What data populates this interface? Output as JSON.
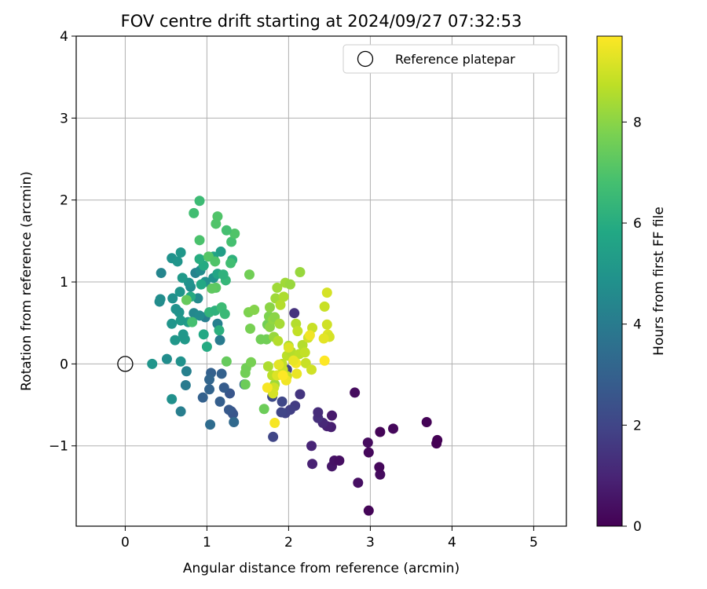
{
  "chart_data": {
    "type": "scatter",
    "title": "FOV centre drift starting at 2024/09/27 07:32:53",
    "xlabel": "Angular distance from reference (arcmin)",
    "ylabel": "Rotation from reference (arcmin)",
    "xlim": [
      -0.6,
      5.4
    ],
    "ylim": [
      -1.98,
      4.0
    ],
    "xticks": [
      0,
      1,
      2,
      3,
      4,
      5
    ],
    "yticks": [
      -1,
      0,
      1,
      2,
      3,
      4
    ],
    "grid": true,
    "colormap": "viridis",
    "legend": {
      "placement": "top-right",
      "label": "Reference platepar",
      "marker": "open-circle"
    },
    "reference_point": {
      "x": 0,
      "y": 0
    },
    "colorbar": {
      "label": "Hours from first FF file",
      "min": 0,
      "max": 9.7,
      "ticks": [
        0,
        2,
        4,
        6,
        8
      ]
    },
    "points": [
      [
        2.98,
        -1.79,
        0.1
      ],
      [
        2.85,
        -1.45,
        0.4
      ],
      [
        3.12,
        -1.35,
        0.3
      ],
      [
        3.11,
        -1.26,
        0.2
      ],
      [
        2.53,
        -1.25,
        0.6
      ],
      [
        2.56,
        -1.18,
        0.5
      ],
      [
        2.62,
        -1.18,
        0.4
      ],
      [
        2.29,
        -1.22,
        0.9
      ],
      [
        2.28,
        -1.0,
        1.0
      ],
      [
        2.98,
        -1.08,
        0.2
      ],
      [
        2.97,
        -0.96,
        0.3
      ],
      [
        3.12,
        -0.83,
        0.1
      ],
      [
        3.28,
        -0.79,
        0.2
      ],
      [
        3.69,
        -0.71,
        0.05
      ],
      [
        3.82,
        -0.93,
        0.02
      ],
      [
        3.81,
        -0.97,
        0.0
      ],
      [
        2.53,
        -0.63,
        0.7
      ],
      [
        2.52,
        -0.77,
        0.8
      ],
      [
        2.47,
        -0.76,
        0.9
      ],
      [
        2.42,
        -0.72,
        1.1
      ],
      [
        2.36,
        -0.66,
        1.3
      ],
      [
        2.36,
        -0.59,
        1.2
      ],
      [
        2.81,
        -0.35,
        0.3
      ],
      [
        2.14,
        -0.37,
        1.5
      ],
      [
        2.08,
        -0.51,
        1.7
      ],
      [
        2.02,
        -0.56,
        1.8
      ],
      [
        1.96,
        -0.6,
        1.9
      ],
      [
        1.91,
        -0.59,
        2.0
      ],
      [
        1.92,
        -0.46,
        2.1
      ],
      [
        1.8,
        -0.4,
        2.2
      ],
      [
        1.81,
        -0.89,
        2.0
      ],
      [
        2.07,
        0.62,
        1.4
      ],
      [
        1.98,
        -0.07,
        1.9
      ],
      [
        1.3,
        -0.58,
        2.5
      ],
      [
        1.32,
        -0.61,
        2.6
      ],
      [
        1.27,
        -0.56,
        2.7
      ],
      [
        1.28,
        -0.36,
        2.6
      ],
      [
        1.21,
        -0.29,
        2.8
      ],
      [
        1.16,
        -0.46,
        2.9
      ],
      [
        1.18,
        -0.12,
        3.0
      ],
      [
        1.03,
        -0.31,
        3.1
      ],
      [
        1.05,
        -0.11,
        3.0
      ],
      [
        1.03,
        -0.19,
        3.2
      ],
      [
        0.95,
        -0.41,
        3.0
      ],
      [
        1.04,
        -0.74,
        3.4
      ],
      [
        1.33,
        -0.71,
        3.3
      ],
      [
        1.46,
        -0.25,
        3.2
      ],
      [
        1.16,
        0.29,
        4.0
      ],
      [
        1.13,
        0.49,
        4.2
      ],
      [
        0.98,
        0.57,
        4.1
      ],
      [
        0.74,
        -0.26,
        4.0
      ],
      [
        0.75,
        -0.09,
        4.2
      ],
      [
        0.68,
        -0.58,
        4.1
      ],
      [
        0.57,
        -0.43,
        4.8
      ],
      [
        0.68,
        0.03,
        4.9
      ],
      [
        0.51,
        0.06,
        4.7
      ],
      [
        0.33,
        0.0,
        5.0
      ],
      [
        0.57,
        0.49,
        5.0
      ],
      [
        0.61,
        0.29,
        5.1
      ],
      [
        0.73,
        0.3,
        5.2
      ],
      [
        0.71,
        0.36,
        5.1
      ],
      [
        0.77,
        0.51,
        5.3
      ],
      [
        0.68,
        0.53,
        5.2
      ],
      [
        0.66,
        0.63,
        5.0
      ],
      [
        0.62,
        0.67,
        4.9
      ],
      [
        0.84,
        0.62,
        4.5
      ],
      [
        0.91,
        0.59,
        4.6
      ],
      [
        0.89,
        0.8,
        4.6
      ],
      [
        0.8,
        0.94,
        4.7
      ],
      [
        0.86,
        1.11,
        4.3
      ],
      [
        0.78,
        0.99,
        4.9
      ],
      [
        0.67,
        0.88,
        5.0
      ],
      [
        0.58,
        0.8,
        4.8
      ],
      [
        0.42,
        0.76,
        4.6
      ],
      [
        0.43,
        0.79,
        4.7
      ],
      [
        0.44,
        1.11,
        4.4
      ],
      [
        0.57,
        1.29,
        4.9
      ],
      [
        0.64,
        1.25,
        5.0
      ],
      [
        0.68,
        1.36,
        5.1
      ],
      [
        0.7,
        1.05,
        5.2
      ],
      [
        0.92,
        1.14,
        4.6
      ],
      [
        0.98,
        1.0,
        4.8
      ],
      [
        1.08,
        1.05,
        4.9
      ],
      [
        1.17,
        1.37,
        5.4
      ],
      [
        1.13,
        1.1,
        5.7
      ],
      [
        1.08,
        1.31,
        5.6
      ],
      [
        0.93,
        0.97,
        5.8
      ],
      [
        0.96,
        1.2,
        5.9
      ],
      [
        0.91,
        1.28,
        6.0
      ],
      [
        0.8,
        0.82,
        5.9
      ],
      [
        1.03,
        0.63,
        6.3
      ],
      [
        1.1,
        0.65,
        6.2
      ],
      [
        1.15,
        0.41,
        6.1
      ],
      [
        0.96,
        0.36,
        5.8
      ],
      [
        1.0,
        0.21,
        5.9
      ],
      [
        1.18,
        0.69,
        6.6
      ],
      [
        1.22,
        0.61,
        6.5
      ],
      [
        1.23,
        1.02,
        6.4
      ],
      [
        1.2,
        1.09,
        6.2
      ],
      [
        1.31,
        1.27,
        6.2
      ],
      [
        1.29,
        1.23,
        6.7
      ],
      [
        1.3,
        1.49,
        6.8
      ],
      [
        1.34,
        1.59,
        7.0
      ],
      [
        1.24,
        1.63,
        6.8
      ],
      [
        1.13,
        1.8,
        7.0
      ],
      [
        1.11,
        1.71,
        7.0
      ],
      [
        0.91,
        1.51,
        6.9
      ],
      [
        0.91,
        1.99,
        6.6
      ],
      [
        0.84,
        1.84,
        6.7
      ],
      [
        1.02,
        1.31,
        7.1
      ],
      [
        1.1,
        1.25,
        7.0
      ],
      [
        1.11,
        0.93,
        7.2
      ],
      [
        1.06,
        0.92,
        7.3
      ],
      [
        0.75,
        0.78,
        7.4
      ],
      [
        0.82,
        0.51,
        6.8
      ],
      [
        1.24,
        0.03,
        7.4
      ],
      [
        1.47,
        -0.25,
        7.5
      ],
      [
        1.48,
        -0.05,
        7.6
      ],
      [
        1.47,
        -0.11,
        7.6
      ],
      [
        1.54,
        0.02,
        7.7
      ],
      [
        1.53,
        0.43,
        7.7
      ],
      [
        1.51,
        0.63,
        7.8
      ],
      [
        1.58,
        0.66,
        7.9
      ],
      [
        1.52,
        1.09,
        7.6
      ],
      [
        1.66,
        0.3,
        7.6
      ],
      [
        1.73,
        0.3,
        7.6
      ],
      [
        1.74,
        0.48,
        7.6
      ],
      [
        1.76,
        0.58,
        7.8
      ],
      [
        1.77,
        0.45,
        8.0
      ],
      [
        1.77,
        0.69,
        8.0
      ],
      [
        1.81,
        0.54,
        8.1
      ],
      [
        1.83,
        0.57,
        8.0
      ],
      [
        1.82,
        0.33,
        8.2
      ],
      [
        1.89,
        0.49,
        8.4
      ],
      [
        1.84,
        0.8,
        8.3
      ],
      [
        1.86,
        0.93,
        8.3
      ],
      [
        1.96,
        0.99,
        8.3
      ],
      [
        2.02,
        0.97,
        8.2
      ],
      [
        2.14,
        1.12,
        8.2
      ],
      [
        1.94,
        0.82,
        8.5
      ],
      [
        1.9,
        0.72,
        8.6
      ],
      [
        1.83,
        -0.25,
        8.3
      ],
      [
        1.75,
        -0.03,
        8.5
      ],
      [
        1.8,
        -0.14,
        8.7
      ],
      [
        1.87,
        0.28,
        8.6
      ],
      [
        1.92,
        0.0,
        8.8
      ],
      [
        1.93,
        -0.07,
        8.9
      ],
      [
        1.98,
        -0.15,
        8.9
      ],
      [
        1.98,
        0.1,
        8.7
      ],
      [
        2.0,
        0.22,
        8.5
      ],
      [
        2.03,
        0.15,
        8.6
      ],
      [
        2.07,
        0.05,
        8.8
      ],
      [
        2.09,
        0.49,
        8.6
      ],
      [
        2.11,
        0.4,
        8.8
      ],
      [
        2.13,
        0.12,
        8.7
      ],
      [
        2.17,
        0.23,
        8.6
      ],
      [
        2.2,
        0.14,
        8.8
      ],
      [
        2.21,
        0.01,
        8.9
      ],
      [
        2.24,
        0.32,
        9.0
      ],
      [
        2.29,
        0.44,
        8.9
      ],
      [
        2.28,
        -0.07,
        9.0
      ],
      [
        2.44,
        0.7,
        8.9
      ],
      [
        2.47,
        0.87,
        9.1
      ],
      [
        2.47,
        0.48,
        9.0
      ],
      [
        2.48,
        0.36,
        9.2
      ],
      [
        2.5,
        0.33,
        9.1
      ],
      [
        2.43,
        0.31,
        9.3
      ],
      [
        2.44,
        0.04,
        9.7
      ],
      [
        2.26,
        0.35,
        9.5
      ],
      [
        2.09,
        0.01,
        9.6
      ],
      [
        2.06,
        0.04,
        9.4
      ],
      [
        2.0,
        0.2,
        9.2
      ],
      [
        1.88,
        -0.01,
        9.3
      ],
      [
        1.86,
        -0.14,
        9.2
      ],
      [
        1.82,
        -0.29,
        9.0
      ],
      [
        1.81,
        -0.36,
        9.1
      ],
      [
        1.83,
        -0.72,
        9.6
      ],
      [
        1.7,
        -0.55,
        7.5
      ],
      [
        1.74,
        -0.29,
        9.6
      ],
      [
        1.97,
        -0.2,
        9.5
      ],
      [
        2.1,
        -0.12,
        9.4
      ],
      [
        1.93,
        -0.14,
        9.7
      ]
    ]
  }
}
